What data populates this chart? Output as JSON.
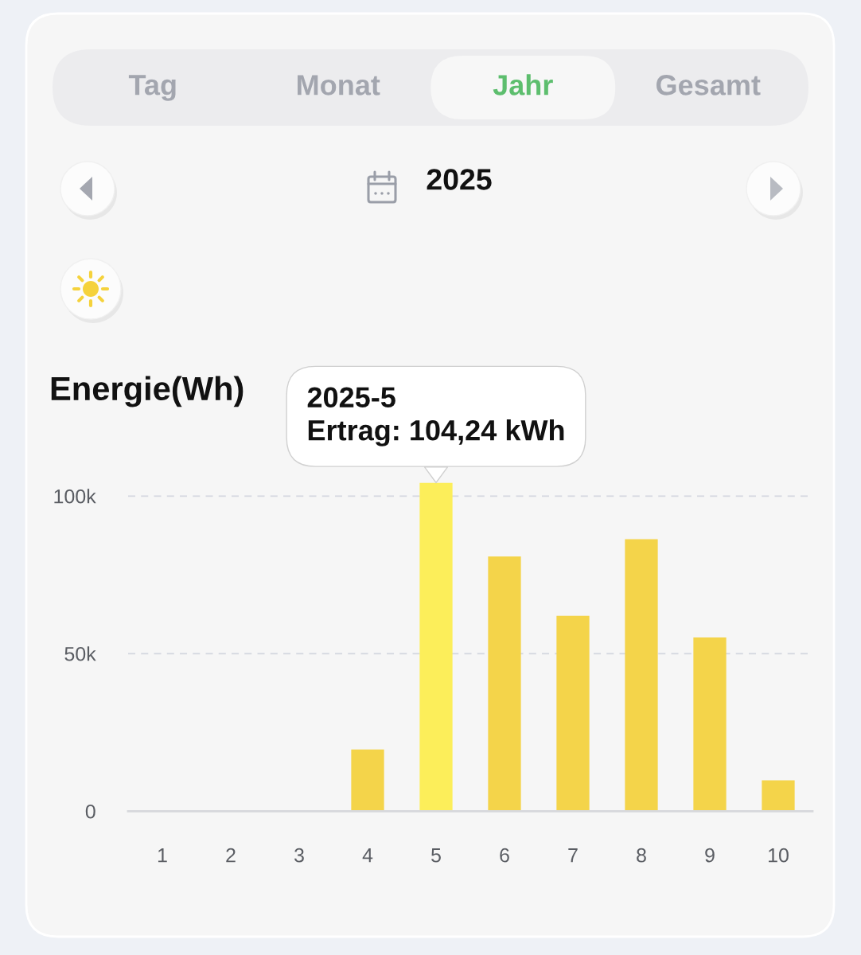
{
  "chart_data": {
    "type": "bar",
    "title": "2025",
    "ylabel": "Energie(Wh)",
    "categories": [
      "1",
      "2",
      "3",
      "4",
      "5",
      "6",
      "7",
      "8",
      "9",
      "10"
    ],
    "values": [
      0,
      0,
      0,
      19600,
      104240,
      80800,
      62000,
      86300,
      55100,
      9800
    ],
    "colors": [
      "#f4d44a",
      "#f4d44a",
      "#f4d44a",
      "#f4d44a",
      "#fcee5a",
      "#f4d44a",
      "#f4d44a",
      "#f4d44a",
      "#f4d44a",
      "#f4d44a"
    ],
    "ylim": [
      0,
      104240
    ],
    "yticks": [
      0,
      {
        "value": 50000,
        "label": "50k"
      },
      {
        "value": 100000,
        "label": "100k"
      }
    ],
    "grid": "y",
    "annotations": [
      "Tag",
      "Monat",
      "Jahr",
      "Gesamt",
      {
        "text": "2025-5\nErtrag: 104,24 kWh",
        "x": "5",
        "y": 104240
      }
    ]
  }
}
